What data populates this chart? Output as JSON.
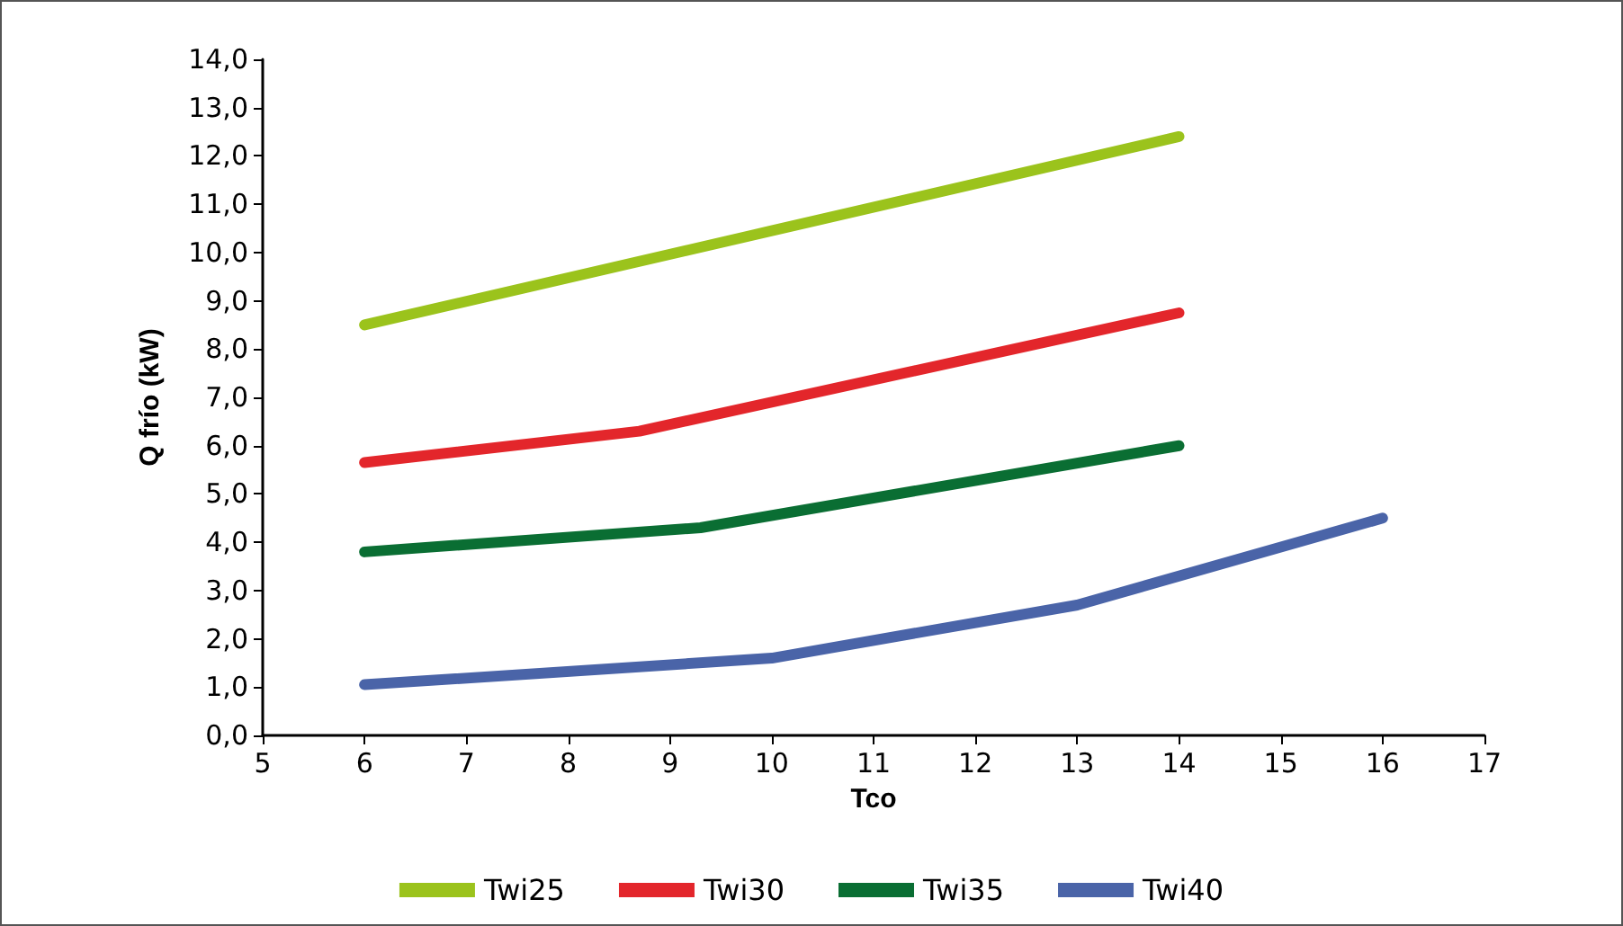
{
  "chart_data": {
    "type": "line",
    "xlabel": "Tco",
    "ylabel": "Q frío (kW)",
    "xlim": [
      5,
      17
    ],
    "xticks": [
      5,
      6,
      7,
      8,
      9,
      10,
      11,
      12,
      13,
      14,
      15,
      16,
      17
    ],
    "ylim": [
      0,
      14
    ],
    "yticks": [
      {
        "value": 0,
        "label": "0,0"
      },
      {
        "value": 1,
        "label": "1,0"
      },
      {
        "value": 2,
        "label": "2,0"
      },
      {
        "value": 3,
        "label": "3,0"
      },
      {
        "value": 4,
        "label": "4,0"
      },
      {
        "value": 5,
        "label": "5,0"
      },
      {
        "value": 6,
        "label": "6,0"
      },
      {
        "value": 7,
        "label": "7,0"
      },
      {
        "value": 8,
        "label": "8,0"
      },
      {
        "value": 9,
        "label": "9,0"
      },
      {
        "value": 10,
        "label": "10,0"
      },
      {
        "value": 11,
        "label": "11,0"
      },
      {
        "value": 12,
        "label": "12,0"
      },
      {
        "value": 13,
        "label": "13,0"
      },
      {
        "value": 14,
        "label": "14,0"
      }
    ],
    "series": [
      {
        "name": "Twi25",
        "color": "#9bc31c",
        "x": [
          6,
          10,
          14
        ],
        "values": [
          8.5,
          10.45,
          12.4
        ]
      },
      {
        "name": "Twi30",
        "color": "#e3262b",
        "x": [
          6,
          8.7,
          14
        ],
        "values": [
          5.65,
          6.3,
          8.75
        ]
      },
      {
        "name": "Twi35",
        "color": "#0a6e33",
        "x": [
          6,
          9.3,
          14
        ],
        "values": [
          3.8,
          4.3,
          6.0
        ]
      },
      {
        "name": "Twi40",
        "color": "#4a64a8",
        "x": [
          6,
          10,
          13,
          16
        ],
        "values": [
          1.05,
          1.6,
          2.7,
          4.5
        ]
      }
    ],
    "grid": false,
    "legend": "bottom",
    "marker": "none",
    "line_style": "solid"
  }
}
